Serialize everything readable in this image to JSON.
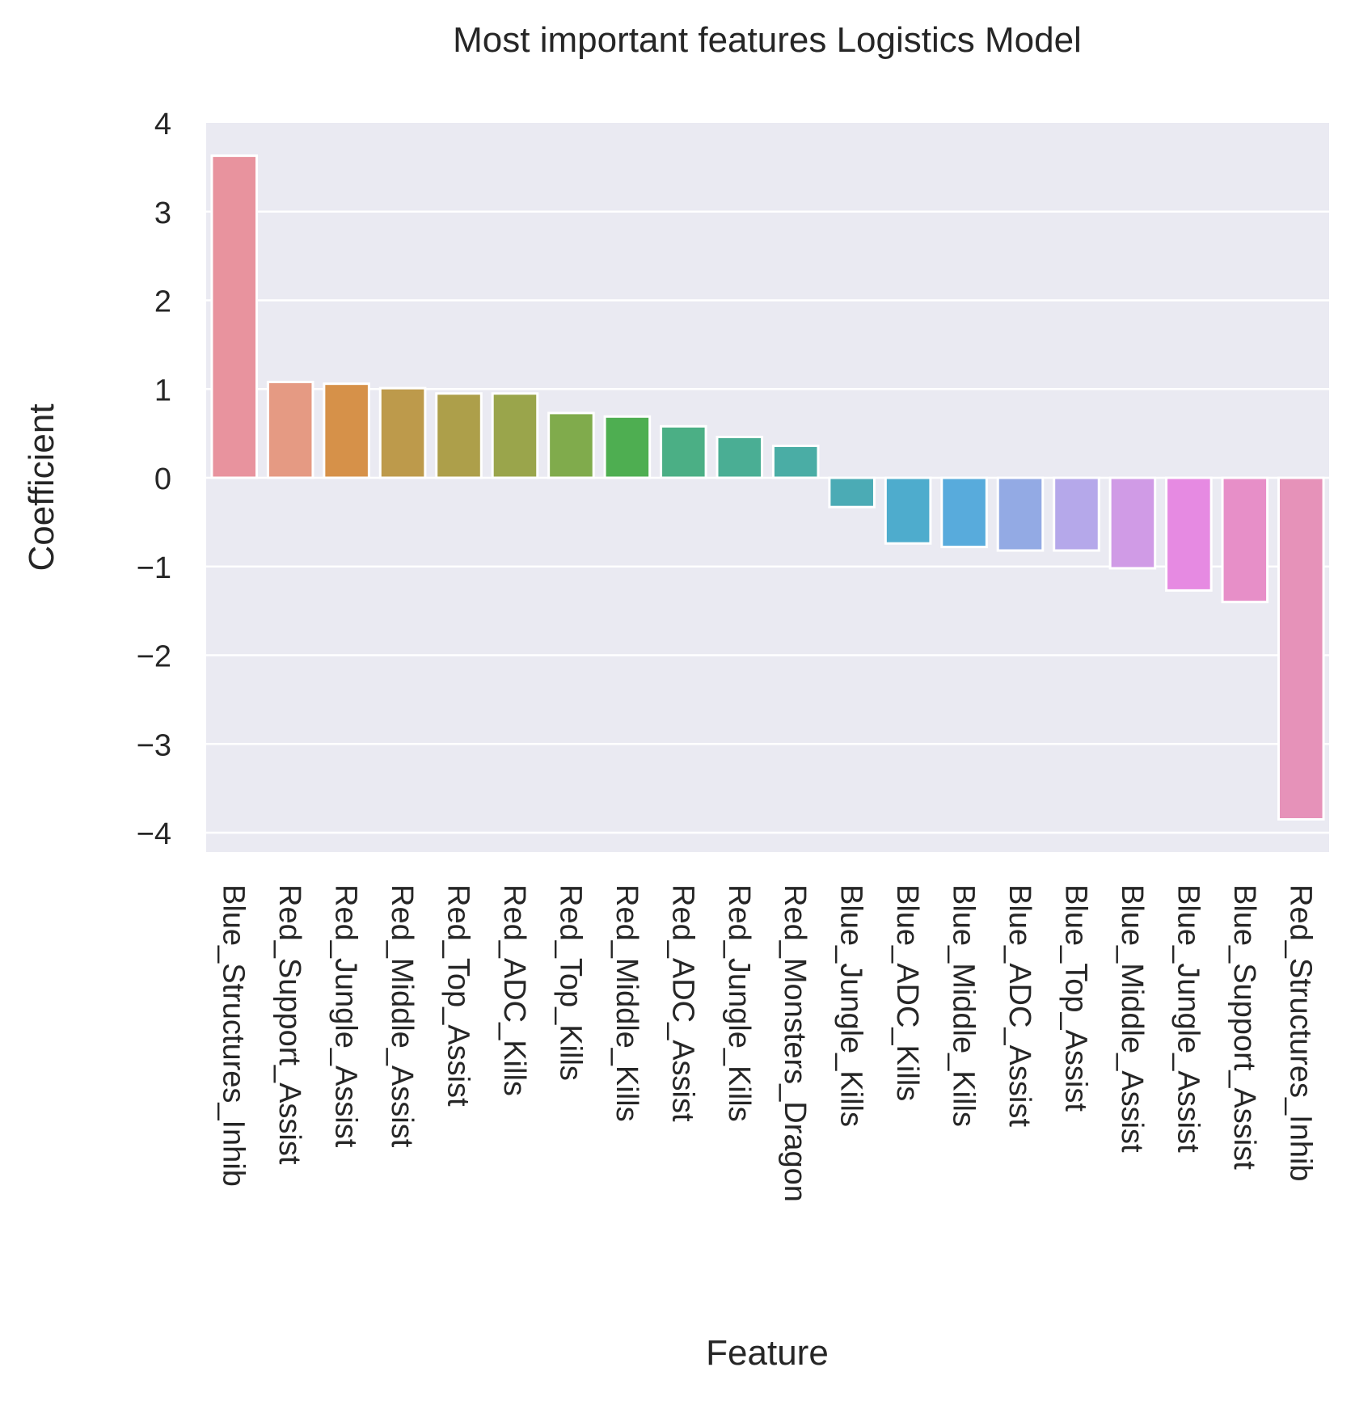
{
  "chart_data": {
    "type": "bar",
    "title": "Most important features Logistics Model",
    "xlabel": "Feature",
    "ylabel": "Coefficient",
    "ylim": [
      -4.2,
      4.0
    ],
    "yticks": [
      4,
      3,
      2,
      1,
      0,
      -1,
      -2,
      -3,
      -4
    ],
    "ytick_labels": [
      "4",
      "3",
      "2",
      "1",
      "0",
      "−1",
      "−2",
      "−3",
      "−4"
    ],
    "grid": true,
    "categories": [
      "Blue_Structures_Inhib",
      "Red_Support_Assist",
      "Red_Jungle_Assist",
      "Red_Middle_Assist",
      "Red_Top_Assist",
      "Red_ADC_Kills",
      "Red_Top_Kills",
      "Red_Middle_Kills",
      "Red_ADC_Assist",
      "Red_Jungle_Kills",
      "Red_Monsters_Dragon",
      "Blue_Jungle_Kills",
      "Blue_ADC_Kills",
      "Blue_Middle_Kills",
      "Blue_ADC_Assist",
      "Blue_Top_Assist",
      "Blue_Middle_Assist",
      "Blue_Jungle_Assist",
      "Blue_Support_Assist",
      "Red_Structures_Inhib"
    ],
    "values": [
      3.63,
      1.08,
      1.06,
      1.01,
      0.95,
      0.95,
      0.73,
      0.69,
      0.58,
      0.46,
      0.36,
      -0.33,
      -0.74,
      -0.78,
      -0.82,
      -0.82,
      -1.02,
      -1.27,
      -1.4,
      -3.85
    ],
    "colors": [
      "#e8939e",
      "#e59a83",
      "#d69149",
      "#bd9a4b",
      "#ad9f4a",
      "#9aa54b",
      "#80ab4c",
      "#4eae51",
      "#4baf85",
      "#4aae94",
      "#4aada5",
      "#4babb5",
      "#4eaccd",
      "#58abdc",
      "#93aae4",
      "#b5a8ea",
      "#d09be6",
      "#e68ae2",
      "#e78fc8",
      "#e692b9"
    ]
  }
}
